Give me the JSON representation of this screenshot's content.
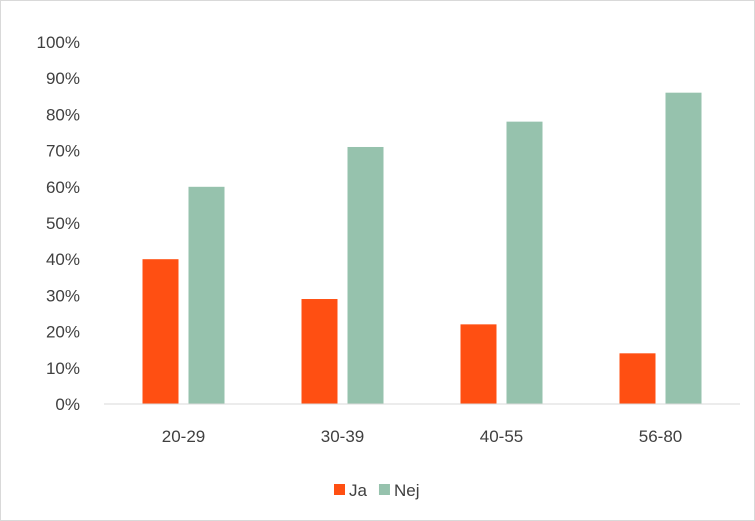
{
  "chart_data": {
    "type": "bar",
    "title": "",
    "xlabel": "",
    "ylabel": "",
    "categories": [
      "20-29",
      "30-39",
      "40-55",
      "56-80"
    ],
    "series": [
      {
        "name": "Ja",
        "values": [
          40,
          29,
          22,
          14
        ],
        "color": "#ff4f12"
      },
      {
        "name": "Nej",
        "values": [
          60,
          71,
          78,
          86
        ],
        "color": "#96c2ad"
      }
    ],
    "ylim": [
      0,
      100
    ],
    "yticks": [
      "0%",
      "10%",
      "20%",
      "30%",
      "40%",
      "50%",
      "60%",
      "70%",
      "80%",
      "90%",
      "100%"
    ],
    "grid": false,
    "legend_position": "bottom"
  }
}
